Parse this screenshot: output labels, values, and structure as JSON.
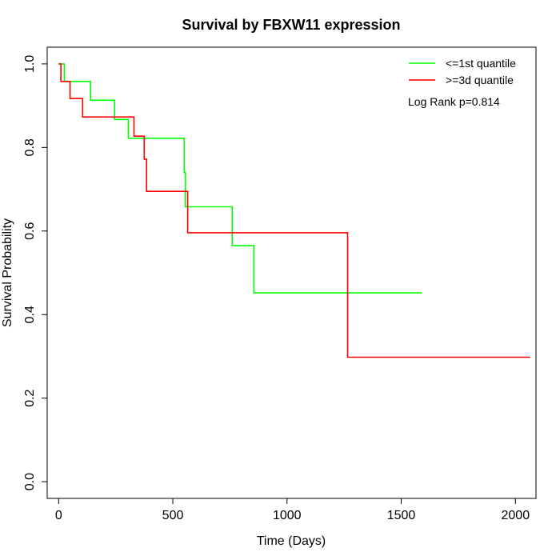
{
  "chart_data": {
    "type": "line",
    "title": "Survival by FBXW11 expression",
    "xlabel": "Time (Days)",
    "ylabel": "Survival Probability",
    "xlim": [
      -50,
      2090
    ],
    "ylim": [
      -0.04,
      1.04
    ],
    "x_ticks": [
      0,
      500,
      1000,
      1500,
      2000
    ],
    "y_ticks": [
      0.0,
      0.2,
      0.4,
      0.6,
      0.8,
      1.0
    ],
    "x_tick_labels": [
      "0",
      "500",
      "1000",
      "1500",
      "2000"
    ],
    "y_tick_labels": [
      "0.0",
      "0.2",
      "0.4",
      "0.6",
      "0.8",
      "1.0"
    ],
    "grid": false,
    "legend_position": "top-right",
    "annotation": "Log Rank p=0.814",
    "series": [
      {
        "name": "<=1st quantile",
        "color": "#00ff00",
        "step": true,
        "x": [
          0,
          25,
          140,
          245,
          305,
          550,
          555,
          760,
          855,
          1590
        ],
        "y": [
          1.0,
          0.958,
          0.913,
          0.867,
          0.822,
          0.74,
          0.658,
          0.565,
          0.452,
          0.452
        ]
      },
      {
        "name": ">=3d quantile",
        "color": "#ff0000",
        "step": true,
        "x": [
          0,
          10,
          50,
          105,
          330,
          375,
          385,
          565,
          1265,
          2065
        ],
        "y": [
          1.0,
          0.958,
          0.917,
          0.873,
          0.827,
          0.772,
          0.695,
          0.596,
          0.298,
          0.298
        ]
      }
    ]
  }
}
